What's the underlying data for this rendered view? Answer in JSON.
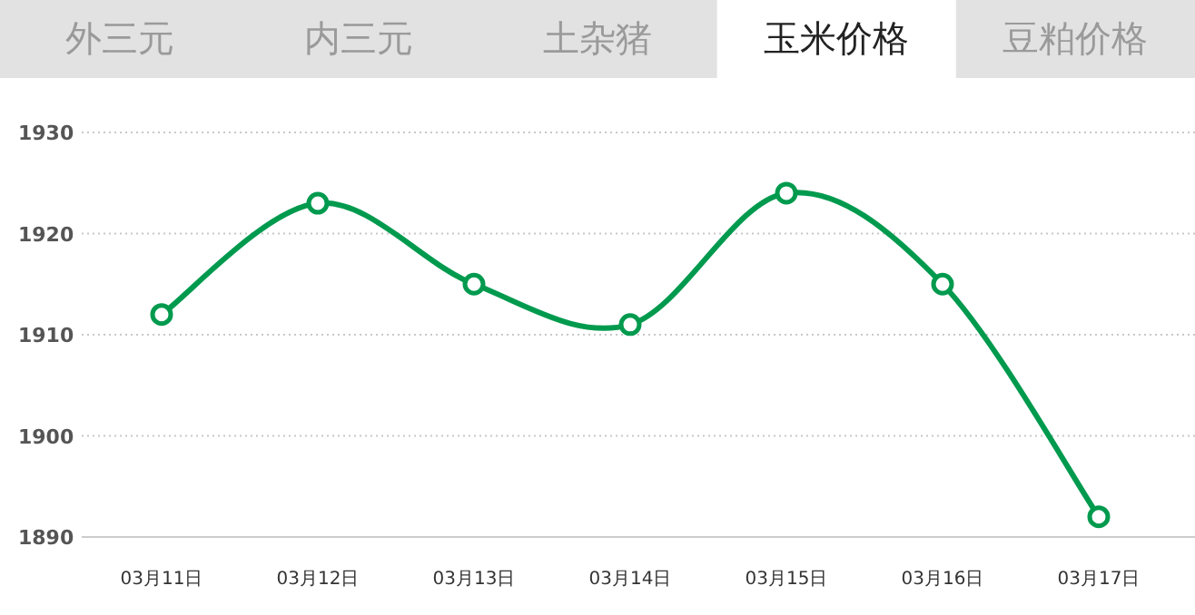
{
  "chart_data": {
    "type": "line",
    "title": "玉米价格",
    "annotations": [
      "外三元",
      "内三元",
      "土杂猪",
      "豆粕价格"
    ],
    "categories": [
      "03月11日",
      "03月12日",
      "03月13日",
      "03月14日",
      "03月15日",
      "03月16日",
      "03月17日"
    ],
    "series": [
      {
        "color": "#009a4e",
        "values": [
          1912,
          1923,
          1915,
          1911,
          1924,
          1915,
          1892
        ]
      }
    ],
    "ylim": [
      1890,
      1930
    ],
    "yticks": [
      1890,
      1900,
      1910,
      1920,
      1930
    ],
    "grid": "y",
    "marker": "circle",
    "line_style": "solid"
  }
}
